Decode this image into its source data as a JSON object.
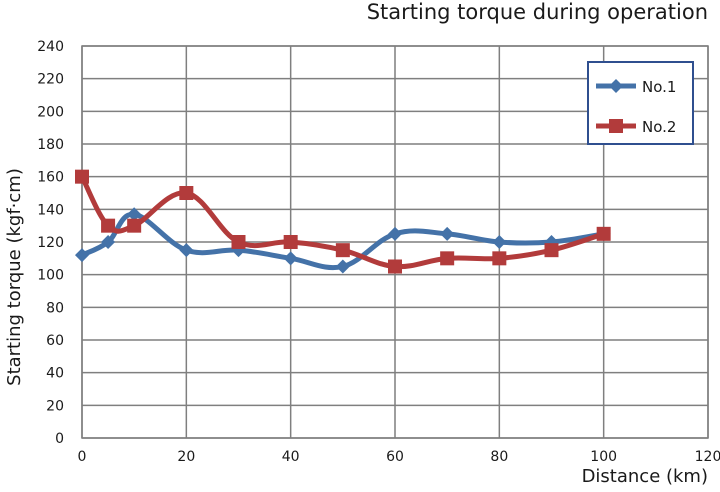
{
  "chart_data": {
    "type": "line",
    "title": "Starting torque during operation",
    "xlabel": "Distance (km)",
    "ylabel": "Starting torque (kgf·cm)",
    "xlim": [
      0,
      120
    ],
    "ylim": [
      0,
      240
    ],
    "x_ticks": [
      0,
      20,
      40,
      60,
      80,
      100,
      120
    ],
    "y_ticks": [
      0,
      20,
      40,
      60,
      80,
      100,
      120,
      140,
      160,
      180,
      200,
      220,
      240
    ],
    "grid": true,
    "legend_position": "top-right",
    "series": [
      {
        "name": "No.1",
        "color": "#4472A8",
        "marker": "diamond",
        "x": [
          0,
          5,
          10,
          20,
          30,
          40,
          50,
          60,
          70,
          80,
          90,
          100
        ],
        "y": [
          112,
          120,
          137,
          115,
          115,
          110,
          105,
          125,
          125,
          120,
          120,
          125
        ]
      },
      {
        "name": "No.2",
        "color": "#B23B3B",
        "marker": "square",
        "x": [
          0,
          5,
          10,
          20,
          30,
          40,
          50,
          60,
          70,
          80,
          90,
          100
        ],
        "y": [
          160,
          130,
          130,
          150,
          120,
          120,
          115,
          105,
          110,
          110,
          115,
          125
        ]
      }
    ]
  }
}
